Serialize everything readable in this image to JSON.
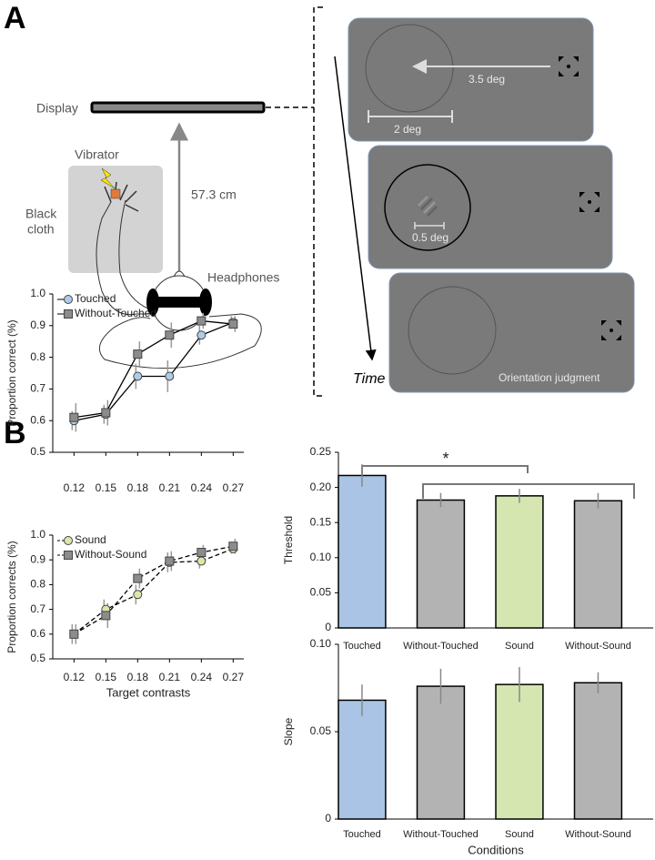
{
  "panel_labels": [
    "A",
    "B"
  ],
  "diagram": {
    "display": "Display",
    "vibrator": "Vibrator",
    "black_cloth": [
      "Black",
      "cloth"
    ],
    "distance": "57.3 cm",
    "headphones": "Headphones",
    "eccentricity": "3.5 deg",
    "ring_size": "2 deg",
    "gabor_size": "0.5 deg",
    "time": "Time",
    "response": "Orientation judgment"
  },
  "chart_data": [
    {
      "type": "line",
      "ylabel": "Proportion correct (%)",
      "x": [
        0.12,
        0.15,
        0.18,
        0.21,
        0.24,
        0.27
      ],
      "xlim": [
        0.1,
        0.28
      ],
      "xticks": [
        0.12,
        0.15,
        0.18,
        0.21,
        0.24,
        0.27
      ],
      "ylim": [
        0.5,
        1
      ],
      "yticks": [
        0.5,
        0.6,
        0.7,
        0.8,
        0.9,
        {
          "value": 1,
          "label": "1.0"
        }
      ],
      "legend": "upper left",
      "series": [
        {
          "name": "Touched",
          "color": "#aecbe8",
          "marker": "circle",
          "linestyle": "solid",
          "values": [
            0.6,
            0.62,
            0.74,
            0.74,
            0.87,
            0.91
          ],
          "errors": [
            0.03,
            0.03,
            0.04,
            0.05,
            0.03,
            0.02
          ]
        },
        {
          "name": "Without-Touched",
          "color": "#8c8c8c",
          "marker": "square",
          "linestyle": "solid",
          "values": [
            0.61,
            0.625,
            0.81,
            0.87,
            0.915,
            0.905
          ],
          "errors": [
            0.045,
            0.04,
            0.04,
            0.04,
            0.025,
            0.025
          ]
        }
      ]
    },
    {
      "type": "line",
      "xlabel": "Target contrasts",
      "ylabel": "Proportion corrects (%)",
      "x": [
        0.12,
        0.15,
        0.18,
        0.21,
        0.24,
        0.27
      ],
      "xlim": [
        0.1,
        0.28
      ],
      "xticks": [
        0.12,
        0.15,
        0.18,
        0.21,
        0.24,
        0.27
      ],
      "ylim": [
        0.5,
        1
      ],
      "yticks": [
        0.5,
        0.6,
        0.7,
        0.8,
        0.9,
        {
          "value": 1,
          "label": "1.0"
        }
      ],
      "legend": "upper left",
      "series": [
        {
          "name": "Sound",
          "color": "#d8e8a8",
          "marker": "circle",
          "linestyle": "dashed",
          "values": [
            0.6,
            0.7,
            0.76,
            0.89,
            0.895,
            0.945
          ],
          "errors": [
            0.04,
            0.04,
            0.04,
            0.04,
            0.03,
            0.02
          ]
        },
        {
          "name": "Without-Sound",
          "color": "#8c8c8c",
          "marker": "square",
          "linestyle": "dashed",
          "values": [
            0.6,
            0.675,
            0.825,
            0.895,
            0.93,
            0.955
          ],
          "errors": [
            0.04,
            0.05,
            0.04,
            0.04,
            0.03,
            0.03
          ]
        }
      ]
    },
    {
      "type": "bar",
      "ylabel": "Threshold",
      "categories": [
        "Touched",
        "Without-Touched",
        "Sound",
        "Without-Sound"
      ],
      "values": [
        0.217,
        0.182,
        0.188,
        0.181
      ],
      "errors": [
        0.016,
        0.01,
        0.01,
        0.011
      ],
      "colors": [
        "#a9c4e4",
        "#b3b3b3",
        "#d5e6b0",
        "#b3b3b3"
      ],
      "ylim": [
        0,
        0.25
      ],
      "yticks": [
        0,
        0.05,
        {
          "value": 0.1,
          "label": "0.10"
        },
        0.15,
        {
          "value": 0.2,
          "label": "0.20"
        },
        0.25
      ],
      "annotations": [
        "*"
      ]
    },
    {
      "type": "bar",
      "xlabel": "Conditions",
      "ylabel": "Slope",
      "categories": [
        "Touched",
        "Without-Touched",
        "Sound",
        "Without-Sound"
      ],
      "values": [
        0.068,
        0.076,
        0.077,
        0.078
      ],
      "errors": [
        0.009,
        0.01,
        0.01,
        0.006
      ],
      "colors": [
        "#a9c4e4",
        "#b3b3b3",
        "#d5e6b0",
        "#b3b3b3"
      ],
      "ylim": [
        0,
        0.1
      ],
      "yticks": [
        0,
        0.05,
        {
          "value": 0.1,
          "label": "0.10"
        }
      ]
    }
  ]
}
